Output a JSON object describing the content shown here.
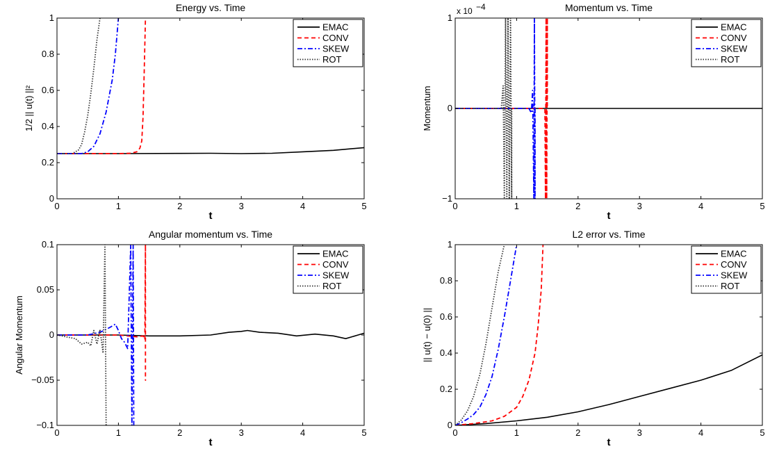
{
  "styles": {
    "EMAC": {
      "color": "#000000",
      "dash": ""
    },
    "CONV": {
      "color": "#ff0000",
      "dash": "6,4"
    },
    "SKEW": {
      "color": "#0000ff",
      "dash": "7,3,2,3"
    },
    "ROT": {
      "color": "#333333",
      "dash": "1.5,2"
    }
  },
  "chart_data": [
    {
      "type": "line",
      "title": "Energy vs. Time",
      "xlabel": "t",
      "ylabel": "1/2 || u(t) ||²",
      "xlim": [
        0,
        5
      ],
      "ylim": [
        0,
        1
      ],
      "xticks": [
        0,
        1,
        2,
        3,
        4,
        5
      ],
      "yticks": [
        0,
        0.2,
        0.4,
        0.6,
        0.8,
        1
      ],
      "ytick_labels": [
        "0",
        "0.2",
        "0.4",
        "0.6",
        "0.8",
        "1"
      ],
      "legend": "top-right",
      "series": [
        {
          "name": "EMAC",
          "x": [
            0,
            1,
            2,
            2.5,
            3,
            3.5,
            4,
            4.5,
            5
          ],
          "y": [
            0.25,
            0.25,
            0.251,
            0.252,
            0.25,
            0.252,
            0.26,
            0.268,
            0.283
          ]
        },
        {
          "name": "CONV",
          "x": [
            0,
            1.0,
            1.2,
            1.3,
            1.35,
            1.38,
            1.4,
            1.42,
            1.44
          ],
          "y": [
            0.25,
            0.25,
            0.252,
            0.26,
            0.28,
            0.32,
            0.45,
            0.7,
            1.0
          ]
        },
        {
          "name": "SKEW",
          "x": [
            0,
            0.4,
            0.5,
            0.6,
            0.7,
            0.8,
            0.9,
            0.95,
            1.0
          ],
          "y": [
            0.25,
            0.25,
            0.26,
            0.29,
            0.36,
            0.48,
            0.66,
            0.8,
            1.0
          ]
        },
        {
          "name": "ROT",
          "x": [
            0,
            0.25,
            0.35,
            0.4,
            0.45,
            0.5,
            0.55,
            0.6,
            0.65,
            0.7
          ],
          "y": [
            0.25,
            0.25,
            0.27,
            0.3,
            0.37,
            0.46,
            0.58,
            0.72,
            0.88,
            1.0
          ]
        }
      ]
    },
    {
      "type": "line",
      "title": "Momentum vs. Time",
      "xlabel": "t",
      "ylabel": "Momentum",
      "xlim": [
        0,
        5
      ],
      "ylim": [
        -1,
        1
      ],
      "xticks": [
        0,
        1,
        2,
        3,
        4,
        5
      ],
      "yticks": [
        -1,
        0,
        1
      ],
      "ytick_labels": [
        "−1",
        "0",
        "1"
      ],
      "exponent_label": "x 10",
      "exponent_power": "−4",
      "legend": "top-right",
      "series": [
        {
          "name": "EMAC",
          "x": [
            0,
            5
          ],
          "y": [
            0,
            0
          ]
        },
        {
          "name": "CONV",
          "x": [
            0,
            1.46,
            1.47,
            1.48,
            1.49,
            1.5,
            1.5
          ],
          "y": [
            0,
            0,
            -1,
            1,
            -1,
            1,
            0
          ]
        },
        {
          "name": "SKEW",
          "x": [
            0,
            1.2,
            1.24,
            1.26,
            1.28,
            1.29,
            1.3,
            1.3
          ],
          "y": [
            0,
            0,
            -0.05,
            0.2,
            -1,
            1,
            -1,
            0
          ]
        },
        {
          "name": "ROT",
          "x": [
            0,
            0.75,
            0.78,
            0.8,
            0.82,
            0.84,
            0.86,
            0.88,
            0.9,
            0.92,
            0.92
          ],
          "y": [
            0,
            0,
            0.25,
            -1,
            1,
            -1,
            1,
            -1,
            1,
            -1,
            0
          ]
        }
      ]
    },
    {
      "type": "line",
      "title": "Angular momentum vs. Time",
      "xlabel": "t",
      "ylabel": "Angular Momentum",
      "xlim": [
        0,
        5
      ],
      "ylim": [
        -0.1,
        0.1
      ],
      "xticks": [
        0,
        1,
        2,
        3,
        4,
        5
      ],
      "yticks": [
        -0.1,
        -0.05,
        0,
        0.05,
        0.1
      ],
      "ytick_labels": [
        "−0.1",
        "−0.05",
        "0",
        "0.05",
        "0.1"
      ],
      "legend": "top-right",
      "series": [
        {
          "name": "EMAC",
          "x": [
            0,
            0.5,
            1.0,
            1.5,
            2.0,
            2.5,
            2.8,
            3.0,
            3.1,
            3.3,
            3.6,
            3.9,
            4.2,
            4.5,
            4.7,
            4.9,
            5.0
          ],
          "y": [
            0,
            0,
            0,
            -0.001,
            -0.001,
            0.0,
            0.003,
            0.004,
            0.005,
            0.003,
            0.002,
            -0.001,
            0.001,
            -0.001,
            -0.004,
            0.0,
            0.002
          ]
        },
        {
          "name": "CONV",
          "x": [
            0,
            1.0,
            1.3,
            1.4,
            1.43,
            1.44,
            1.44,
            1.45
          ],
          "y": [
            0,
            0,
            -0.002,
            -0.001,
            -0.005,
            0.1,
            -0.05,
            -0.05
          ]
        },
        {
          "name": "SKEW",
          "x": [
            0,
            0.5,
            0.7,
            0.85,
            0.95,
            1.0,
            1.05,
            1.1,
            1.15,
            1.2,
            1.22,
            1.24,
            1.25
          ],
          "y": [
            0,
            0,
            0.003,
            0.008,
            0.012,
            0.005,
            -0.004,
            -0.008,
            -0.015,
            0.1,
            -0.1,
            0.1,
            -0.1
          ]
        },
        {
          "name": "ROT",
          "x": [
            0,
            0.3,
            0.4,
            0.5,
            0.55,
            0.6,
            0.65,
            0.7,
            0.75,
            0.78,
            0.8
          ],
          "y": [
            0,
            -0.004,
            -0.01,
            -0.008,
            -0.012,
            0.005,
            -0.01,
            0.006,
            -0.02,
            0.1,
            -0.1
          ]
        }
      ]
    },
    {
      "type": "line",
      "title": "L2 error vs. Time",
      "xlabel": "t",
      "ylabel": "|| u(t) − u(0) ||",
      "xlim": [
        0,
        5
      ],
      "ylim": [
        0,
        1
      ],
      "xticks": [
        0,
        1,
        2,
        3,
        4,
        5
      ],
      "yticks": [
        0,
        0.2,
        0.4,
        0.6,
        0.8,
        1
      ],
      "ytick_labels": [
        "0",
        "0.2",
        "0.4",
        "0.6",
        "0.8",
        "1"
      ],
      "legend": "top-right",
      "series": [
        {
          "name": "EMAC",
          "x": [
            0,
            0.5,
            1.0,
            1.5,
            2.0,
            2.5,
            3.0,
            3.5,
            4.0,
            4.5,
            5.0
          ],
          "y": [
            0,
            0.01,
            0.025,
            0.045,
            0.075,
            0.115,
            0.16,
            0.205,
            0.25,
            0.305,
            0.39
          ]
        },
        {
          "name": "CONV",
          "x": [
            0,
            0.3,
            0.6,
            0.8,
            1.0,
            1.1,
            1.2,
            1.3,
            1.35,
            1.4,
            1.43
          ],
          "y": [
            0,
            0.01,
            0.025,
            0.05,
            0.1,
            0.16,
            0.25,
            0.4,
            0.55,
            0.75,
            1.0
          ]
        },
        {
          "name": "SKEW",
          "x": [
            0,
            0.1,
            0.2,
            0.3,
            0.4,
            0.5,
            0.6,
            0.7,
            0.8,
            0.9,
            1.0
          ],
          "y": [
            0,
            0.015,
            0.035,
            0.06,
            0.1,
            0.17,
            0.27,
            0.42,
            0.6,
            0.8,
            1.0
          ]
        },
        {
          "name": "ROT",
          "x": [
            0,
            0.1,
            0.2,
            0.3,
            0.4,
            0.5,
            0.6,
            0.7,
            0.8
          ],
          "y": [
            0,
            0.03,
            0.08,
            0.16,
            0.28,
            0.45,
            0.65,
            0.85,
            1.0
          ]
        }
      ]
    }
  ]
}
